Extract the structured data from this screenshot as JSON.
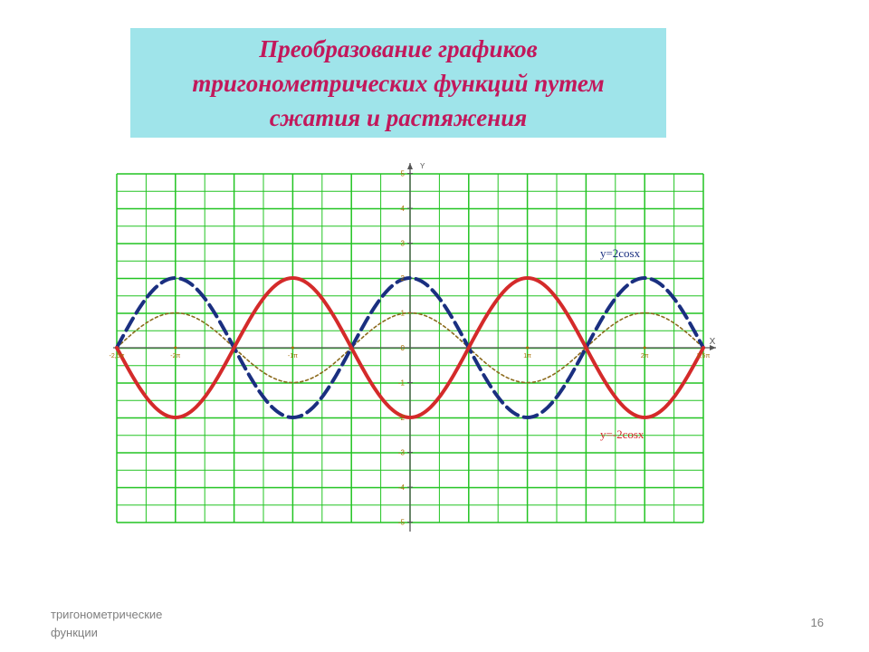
{
  "slide": {
    "title_lines": [
      "Преобразование графиков",
      "тригонометрических функций путем",
      "сжатия и растяжения"
    ],
    "footer_lines": [
      "тригонометрические",
      "функции"
    ],
    "page_number": "16"
  },
  "chart_data": {
    "type": "line",
    "title": "",
    "xlabel": "X",
    "ylabel": "Y",
    "xlim": [
      -2.5,
      2.5
    ],
    "x_unit": "π",
    "ylim": [
      -5,
      5
    ],
    "grid": true,
    "y_ticks": [
      "5",
      "4",
      "3",
      "2",
      "1",
      "0",
      "-1",
      "-2",
      "-3",
      "-4",
      "-5"
    ],
    "x_ticks": [
      {
        "value": -2.5,
        "label": "-2,5π"
      },
      {
        "value": -2,
        "label": "-2π"
      },
      {
        "value": -1,
        "label": "-1π"
      },
      {
        "value": 1,
        "label": "1π"
      },
      {
        "value": 2,
        "label": "2π"
      },
      {
        "value": 2.5,
        "label": "2,5π"
      }
    ],
    "series": [
      {
        "name": "y=2cosx",
        "function": "2cos(x)",
        "amplitude": 2,
        "color": "#1a2f80",
        "style": "dashed",
        "label_x": 1.62,
        "label_y": 2.6
      },
      {
        "name": "y=-2cosx",
        "function": "-2cos(x)",
        "amplitude": -2,
        "color": "#d42a2a",
        "style": "solid",
        "label_x": 1.62,
        "label_y": -2.6
      },
      {
        "name": "",
        "function": "cos(x)",
        "amplitude": 1,
        "color": "#8b6a1c",
        "style": "dotted"
      }
    ],
    "colors": {
      "grid": "#22c422",
      "axis": "#555555",
      "tick_text": "#a56b00"
    }
  }
}
